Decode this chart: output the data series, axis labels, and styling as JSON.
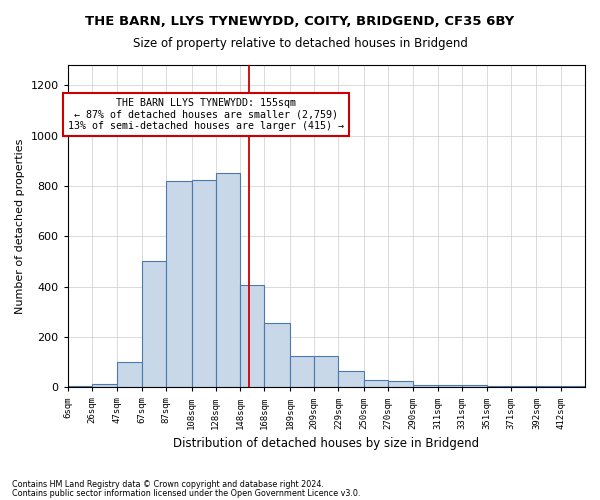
{
  "title": "THE BARN, LLYS TYNEWYDD, COITY, BRIDGEND, CF35 6BY",
  "subtitle": "Size of property relative to detached houses in Bridgend",
  "xlabel": "Distribution of detached houses by size in Bridgend",
  "ylabel": "Number of detached properties",
  "footnote1": "Contains HM Land Registry data © Crown copyright and database right 2024.",
  "footnote2": "Contains public sector information licensed under the Open Government Licence v3.0.",
  "bin_edges": [
    6,
    26,
    47,
    67,
    87,
    108,
    128,
    148,
    168,
    189,
    209,
    229,
    250,
    270,
    290,
    311,
    331,
    351,
    371,
    392,
    412,
    432
  ],
  "bar_heights": [
    5,
    15,
    100,
    500,
    820,
    825,
    850,
    405,
    255,
    125,
    125,
    65,
    30,
    25,
    10,
    10,
    10,
    5,
    5,
    5,
    5
  ],
  "bar_color": "#c8d8e8",
  "bar_edge_color": "#4a7aad",
  "vline_x": 155,
  "vline_color": "#cc0000",
  "annotation_text": "THE BARN LLYS TYNEWYDD: 155sqm\n← 87% of detached houses are smaller (2,759)\n13% of semi-detached houses are larger (415) →",
  "annotation_box_color": "#ffffff",
  "annotation_box_edge_color": "#cc0000",
  "ylim": [
    0,
    1280
  ],
  "yticks": [
    0,
    200,
    400,
    600,
    800,
    1000,
    1200
  ],
  "xtick_labels": [
    "6sqm",
    "26sqm",
    "47sqm",
    "67sqm",
    "87sqm",
    "108sqm",
    "128sqm",
    "148sqm",
    "168sqm",
    "189sqm",
    "209sqm",
    "229sqm",
    "250sqm",
    "270sqm",
    "290sqm",
    "311sqm",
    "331sqm",
    "351sqm",
    "371sqm",
    "392sqm",
    "412sqm"
  ],
  "background_color": "#ffffff",
  "grid_color": "#cccccc"
}
